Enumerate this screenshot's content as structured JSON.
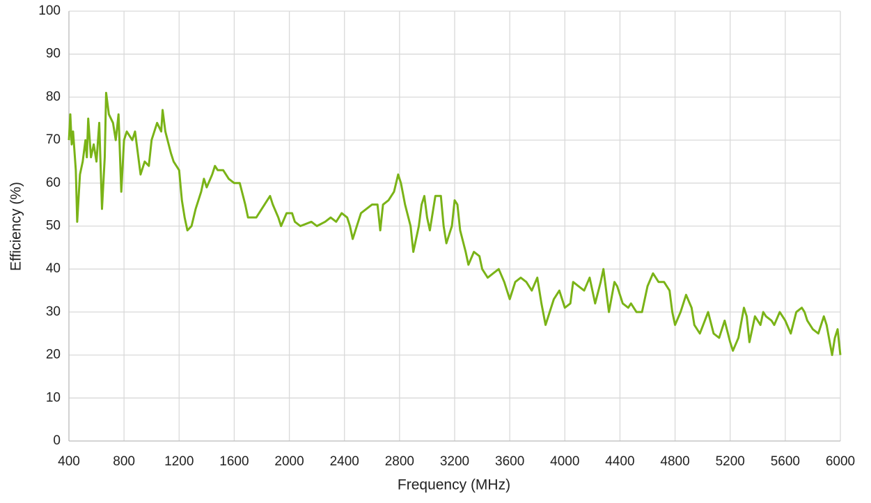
{
  "chart_data": {
    "type": "line",
    "x_label": "Frequency (MHz)",
    "y_label": "Efficiency (%)",
    "xlim": [
      400,
      6000
    ],
    "xticks": [
      400,
      800,
      1200,
      1600,
      2000,
      2400,
      2800,
      3200,
      3600,
      4000,
      4400,
      4800,
      5200,
      5600,
      6000
    ],
    "ylim": [
      0,
      100
    ],
    "yticks": [
      0,
      10,
      20,
      30,
      40,
      50,
      60,
      70,
      80,
      90,
      100
    ],
    "grid": true,
    "series": [
      {
        "name": "Efficiency",
        "color": "#7ab317",
        "x": [
          400,
          410,
          420,
          430,
          450,
          460,
          480,
          500,
          520,
          530,
          540,
          560,
          580,
          600,
          620,
          640,
          660,
          670,
          690,
          720,
          740,
          760,
          780,
          800,
          820,
          860,
          880,
          920,
          950,
          980,
          1000,
          1040,
          1070,
          1080,
          1100,
          1140,
          1160,
          1200,
          1220,
          1240,
          1260,
          1290,
          1320,
          1360,
          1380,
          1400,
          1440,
          1460,
          1480,
          1520,
          1560,
          1600,
          1640,
          1680,
          1700,
          1760,
          1800,
          1840,
          1860,
          1880,
          1920,
          1940,
          1980,
          2020,
          2040,
          2080,
          2160,
          2200,
          2260,
          2300,
          2340,
          2380,
          2420,
          2440,
          2460,
          2500,
          2520,
          2560,
          2600,
          2640,
          2660,
          2680,
          2720,
          2760,
          2790,
          2810,
          2840,
          2880,
          2900,
          2940,
          2960,
          2980,
          3000,
          3020,
          3060,
          3100,
          3120,
          3140,
          3180,
          3200,
          3220,
          3240,
          3280,
          3300,
          3340,
          3380,
          3400,
          3440,
          3480,
          3520,
          3560,
          3600,
          3640,
          3680,
          3720,
          3760,
          3800,
          3830,
          3860,
          3880,
          3920,
          3960,
          4000,
          4040,
          4060,
          4100,
          4140,
          4180,
          4220,
          4260,
          4280,
          4320,
          4360,
          4380,
          4420,
          4460,
          4480,
          4520,
          4560,
          4600,
          4640,
          4680,
          4720,
          4760,
          4780,
          4800,
          4840,
          4880,
          4920,
          4940,
          4980,
          5040,
          5080,
          5120,
          5160,
          5200,
          5220,
          5260,
          5300,
          5320,
          5340,
          5380,
          5420,
          5440,
          5460,
          5500,
          5520,
          5560,
          5600,
          5640,
          5680,
          5720,
          5740,
          5760,
          5800,
          5840,
          5880,
          5900,
          5940,
          5960,
          5980,
          6000
        ],
        "values": [
          70,
          76,
          69,
          72,
          63,
          51,
          62,
          65,
          70,
          66,
          75,
          66,
          69,
          65,
          74,
          54,
          66,
          81,
          76,
          74,
          70,
          76,
          58,
          70,
          72,
          70,
          72,
          62,
          65,
          64,
          70,
          74,
          72,
          77,
          72,
          67,
          65,
          63,
          56,
          52,
          49,
          50,
          54,
          58,
          61,
          59,
          62,
          64,
          63,
          63,
          61,
          60,
          60,
          55,
          52,
          52,
          54,
          56,
          57,
          55,
          52,
          50,
          53,
          53,
          51,
          50,
          51,
          50,
          51,
          52,
          51,
          53,
          52,
          50,
          47,
          51,
          53,
          54,
          55,
          55,
          49,
          55,
          56,
          58,
          62,
          60,
          55,
          50,
          44,
          50,
          55,
          57,
          52,
          49,
          57,
          57,
          50,
          46,
          50,
          56,
          55,
          49,
          44,
          41,
          44,
          43,
          40,
          38,
          39,
          40,
          37,
          33,
          37,
          38,
          37,
          35,
          38,
          32,
          27,
          29,
          33,
          35,
          31,
          32,
          37,
          36,
          35,
          38,
          32,
          37,
          40,
          30,
          37,
          36,
          32,
          31,
          32,
          30,
          30,
          36,
          39,
          37,
          37,
          35,
          30,
          27,
          30,
          34,
          31,
          27,
          25,
          30,
          25,
          24,
          28,
          23,
          21,
          24,
          31,
          29,
          23,
          29,
          27,
          30,
          29,
          28,
          27,
          30,
          28,
          25,
          30,
          31,
          30,
          28,
          26,
          25,
          29,
          27,
          20,
          24,
          26,
          20
        ]
      }
    ]
  }
}
